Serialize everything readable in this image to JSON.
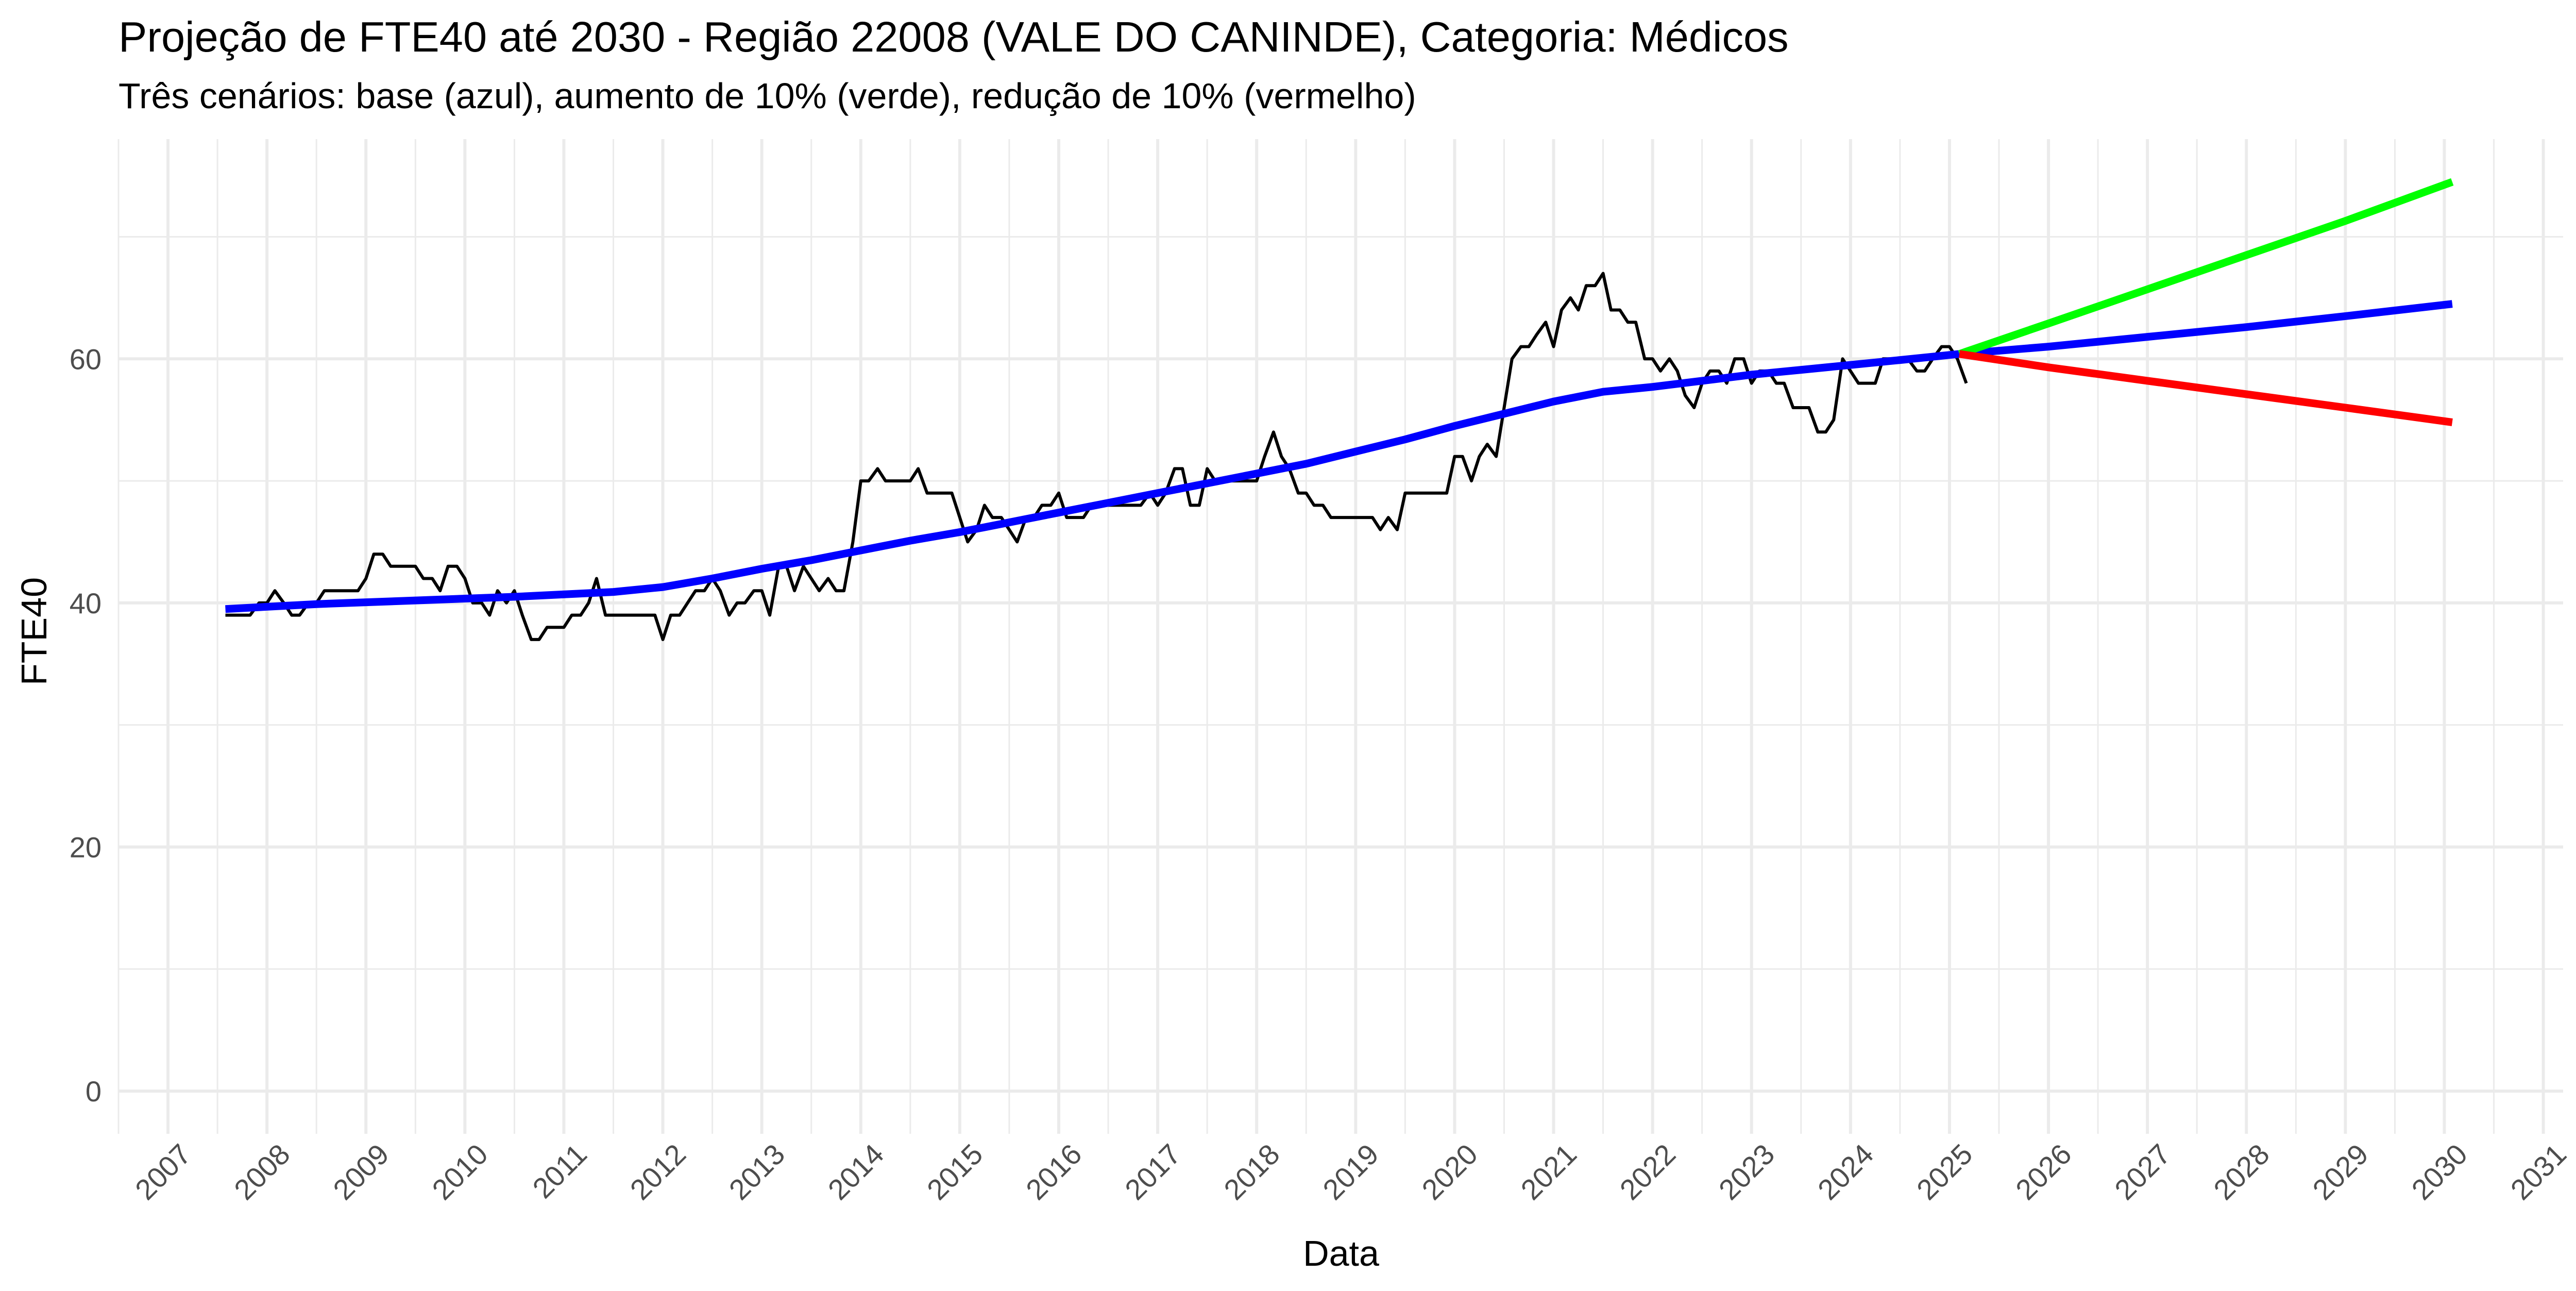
{
  "chart_data": {
    "type": "line",
    "title": "Projeção de FTE40 até 2030 - Região 22008 (VALE DO CANINDE), Categoria: Médicos",
    "subtitle": "Três cenários: base (azul), aumento de 10% (verde), redução de 10% (vermelho)",
    "xlabel": "Data",
    "ylabel": "FTE40",
    "x_ticks": [
      "2007",
      "2008",
      "2009",
      "2010",
      "2011",
      "2012",
      "2013",
      "2014",
      "2015",
      "2016",
      "2017",
      "2018",
      "2019",
      "2020",
      "2021",
      "2022",
      "2023",
      "2024",
      "2025",
      "2026",
      "2027",
      "2028",
      "2029",
      "2030",
      "2031"
    ],
    "y_ticks": [
      0,
      20,
      40,
      60
    ],
    "xlim": [
      2006.5,
      2031.2
    ],
    "ylim": [
      -3.5,
      78
    ],
    "grid": true,
    "legend": "none",
    "colors": {
      "observed": "#000000",
      "base": "#0000FF",
      "increase": "#00FF00",
      "decrease": "#FF0000",
      "grid": "#EBEBEB"
    },
    "series": [
      {
        "color_key": "observed",
        "points": [
          [
            2007.58,
            39
          ],
          [
            2007.67,
            39
          ],
          [
            2007.75,
            39
          ],
          [
            2007.83,
            39
          ],
          [
            2007.92,
            40
          ],
          [
            2008.0,
            40
          ],
          [
            2008.08,
            41
          ],
          [
            2008.17,
            40
          ],
          [
            2008.25,
            39
          ],
          [
            2008.33,
            39
          ],
          [
            2008.42,
            40
          ],
          [
            2008.5,
            40
          ],
          [
            2008.58,
            41
          ],
          [
            2008.67,
            41
          ],
          [
            2008.75,
            41
          ],
          [
            2008.83,
            41
          ],
          [
            2008.92,
            41
          ],
          [
            2009.0,
            42
          ],
          [
            2009.08,
            44
          ],
          [
            2009.17,
            44
          ],
          [
            2009.25,
            43
          ],
          [
            2009.33,
            43
          ],
          [
            2009.42,
            43
          ],
          [
            2009.5,
            43
          ],
          [
            2009.58,
            42
          ],
          [
            2009.67,
            42
          ],
          [
            2009.75,
            41
          ],
          [
            2009.83,
            43
          ],
          [
            2009.92,
            43
          ],
          [
            2010.0,
            42
          ],
          [
            2010.08,
            40
          ],
          [
            2010.17,
            40
          ],
          [
            2010.25,
            39
          ],
          [
            2010.33,
            41
          ],
          [
            2010.42,
            40
          ],
          [
            2010.5,
            41
          ],
          [
            2010.58,
            39
          ],
          [
            2010.67,
            37
          ],
          [
            2010.75,
            37
          ],
          [
            2010.83,
            38
          ],
          [
            2010.92,
            38
          ],
          [
            2011.0,
            38
          ],
          [
            2011.08,
            39
          ],
          [
            2011.17,
            39
          ],
          [
            2011.25,
            40
          ],
          [
            2011.33,
            42
          ],
          [
            2011.42,
            39
          ],
          [
            2011.5,
            39
          ],
          [
            2011.58,
            39
          ],
          [
            2011.67,
            39
          ],
          [
            2011.75,
            39
          ],
          [
            2011.83,
            39
          ],
          [
            2011.92,
            39
          ],
          [
            2012.0,
            37
          ],
          [
            2012.08,
            39
          ],
          [
            2012.17,
            39
          ],
          [
            2012.25,
            40
          ],
          [
            2012.33,
            41
          ],
          [
            2012.42,
            41
          ],
          [
            2012.5,
            42
          ],
          [
            2012.58,
            41
          ],
          [
            2012.67,
            39
          ],
          [
            2012.75,
            40
          ],
          [
            2012.83,
            40
          ],
          [
            2012.92,
            41
          ],
          [
            2013.0,
            41
          ],
          [
            2013.08,
            39
          ],
          [
            2013.17,
            43
          ],
          [
            2013.25,
            43
          ],
          [
            2013.33,
            41
          ],
          [
            2013.42,
            43
          ],
          [
            2013.5,
            42
          ],
          [
            2013.58,
            41
          ],
          [
            2013.67,
            42
          ],
          [
            2013.75,
            41
          ],
          [
            2013.83,
            41
          ],
          [
            2013.92,
            45
          ],
          [
            2014.0,
            50
          ],
          [
            2014.08,
            50
          ],
          [
            2014.17,
            51
          ],
          [
            2014.25,
            50
          ],
          [
            2014.33,
            50
          ],
          [
            2014.42,
            50
          ],
          [
            2014.5,
            50
          ],
          [
            2014.58,
            51
          ],
          [
            2014.67,
            49
          ],
          [
            2014.75,
            49
          ],
          [
            2014.83,
            49
          ],
          [
            2014.92,
            49
          ],
          [
            2015.0,
            47
          ],
          [
            2015.08,
            45
          ],
          [
            2015.17,
            46
          ],
          [
            2015.25,
            48
          ],
          [
            2015.33,
            47
          ],
          [
            2015.42,
            47
          ],
          [
            2015.5,
            46
          ],
          [
            2015.58,
            45
          ],
          [
            2015.67,
            47
          ],
          [
            2015.75,
            47
          ],
          [
            2015.83,
            48
          ],
          [
            2015.92,
            48
          ],
          [
            2016.0,
            49
          ],
          [
            2016.08,
            47
          ],
          [
            2016.17,
            47
          ],
          [
            2016.25,
            47
          ],
          [
            2016.33,
            48
          ],
          [
            2016.42,
            48
          ],
          [
            2016.5,
            48
          ],
          [
            2016.58,
            48
          ],
          [
            2016.67,
            48
          ],
          [
            2016.75,
            48
          ],
          [
            2016.83,
            48
          ],
          [
            2016.92,
            49
          ],
          [
            2017.0,
            48
          ],
          [
            2017.08,
            49
          ],
          [
            2017.17,
            51
          ],
          [
            2017.25,
            51
          ],
          [
            2017.33,
            48
          ],
          [
            2017.42,
            48
          ],
          [
            2017.5,
            51
          ],
          [
            2017.58,
            50
          ],
          [
            2017.67,
            50
          ],
          [
            2017.75,
            50
          ],
          [
            2017.83,
            50
          ],
          [
            2017.92,
            50
          ],
          [
            2018.0,
            50
          ],
          [
            2018.08,
            52
          ],
          [
            2018.17,
            54
          ],
          [
            2018.25,
            52
          ],
          [
            2018.33,
            51
          ],
          [
            2018.42,
            49
          ],
          [
            2018.5,
            49
          ],
          [
            2018.58,
            48
          ],
          [
            2018.67,
            48
          ],
          [
            2018.75,
            47
          ],
          [
            2018.83,
            47
          ],
          [
            2018.92,
            47
          ],
          [
            2019.0,
            47
          ],
          [
            2019.08,
            47
          ],
          [
            2019.17,
            47
          ],
          [
            2019.25,
            46
          ],
          [
            2019.33,
            47
          ],
          [
            2019.42,
            46
          ],
          [
            2019.5,
            49
          ],
          [
            2019.58,
            49
          ],
          [
            2019.67,
            49
          ],
          [
            2019.75,
            49
          ],
          [
            2019.83,
            49
          ],
          [
            2019.92,
            49
          ],
          [
            2020.0,
            52
          ],
          [
            2020.08,
            52
          ],
          [
            2020.17,
            50
          ],
          [
            2020.25,
            52
          ],
          [
            2020.33,
            53
          ],
          [
            2020.42,
            52
          ],
          [
            2020.5,
            56
          ],
          [
            2020.58,
            60
          ],
          [
            2020.67,
            61
          ],
          [
            2020.75,
            61
          ],
          [
            2020.83,
            62
          ],
          [
            2020.92,
            63
          ],
          [
            2021.0,
            61
          ],
          [
            2021.08,
            64
          ],
          [
            2021.17,
            65
          ],
          [
            2021.25,
            64
          ],
          [
            2021.33,
            66
          ],
          [
            2021.42,
            66
          ],
          [
            2021.5,
            67
          ],
          [
            2021.58,
            64
          ],
          [
            2021.67,
            64
          ],
          [
            2021.75,
            63
          ],
          [
            2021.83,
            63
          ],
          [
            2021.92,
            60
          ],
          [
            2022.0,
            60
          ],
          [
            2022.08,
            59
          ],
          [
            2022.17,
            60
          ],
          [
            2022.25,
            59
          ],
          [
            2022.33,
            57
          ],
          [
            2022.42,
            56
          ],
          [
            2022.5,
            58
          ],
          [
            2022.58,
            59
          ],
          [
            2022.67,
            59
          ],
          [
            2022.75,
            58
          ],
          [
            2022.83,
            60
          ],
          [
            2022.92,
            60
          ],
          [
            2023.0,
            58
          ],
          [
            2023.08,
            59
          ],
          [
            2023.17,
            59
          ],
          [
            2023.25,
            58
          ],
          [
            2023.33,
            58
          ],
          [
            2023.42,
            56
          ],
          [
            2023.5,
            56
          ],
          [
            2023.58,
            56
          ],
          [
            2023.67,
            54
          ],
          [
            2023.75,
            54
          ],
          [
            2023.83,
            55
          ],
          [
            2023.92,
            60
          ],
          [
            2024.0,
            59
          ],
          [
            2024.08,
            58
          ],
          [
            2024.17,
            58
          ],
          [
            2024.25,
            58
          ],
          [
            2024.33,
            60
          ],
          [
            2024.42,
            60
          ],
          [
            2024.5,
            60
          ],
          [
            2024.58,
            60
          ],
          [
            2024.67,
            59
          ],
          [
            2024.75,
            59
          ],
          [
            2024.83,
            60
          ],
          [
            2024.92,
            61
          ],
          [
            2025.0,
            61
          ],
          [
            2025.08,
            60
          ],
          [
            2025.17,
            58
          ]
        ]
      },
      {
        "color_key": "base",
        "points": [
          [
            2007.58,
            39.5
          ],
          [
            2008.5,
            39.9
          ],
          [
            2009.5,
            40.2
          ],
          [
            2010.5,
            40.5
          ],
          [
            2011.5,
            40.9
          ],
          [
            2012.0,
            41.3
          ],
          [
            2012.5,
            42.0
          ],
          [
            2013.0,
            42.8
          ],
          [
            2013.5,
            43.5
          ],
          [
            2014.0,
            44.3
          ],
          [
            2014.5,
            45.1
          ],
          [
            2015.0,
            45.8
          ],
          [
            2015.5,
            46.6
          ],
          [
            2016.0,
            47.4
          ],
          [
            2016.5,
            48.2
          ],
          [
            2017.0,
            49.0
          ],
          [
            2017.5,
            49.8
          ],
          [
            2018.0,
            50.6
          ],
          [
            2018.5,
            51.4
          ],
          [
            2019.0,
            52.4
          ],
          [
            2019.5,
            53.4
          ],
          [
            2020.0,
            54.5
          ],
          [
            2020.5,
            55.5
          ],
          [
            2021.0,
            56.5
          ],
          [
            2021.5,
            57.3
          ],
          [
            2022.0,
            57.7
          ],
          [
            2022.5,
            58.2
          ],
          [
            2023.0,
            58.7
          ],
          [
            2023.5,
            59.1
          ],
          [
            2024.0,
            59.5
          ],
          [
            2024.5,
            59.9
          ],
          [
            2025.1,
            60.4
          ],
          [
            2026.0,
            61.0
          ],
          [
            2027.0,
            61.8
          ],
          [
            2028.0,
            62.6
          ],
          [
            2029.0,
            63.5
          ],
          [
            2030.08,
            64.5
          ]
        ]
      },
      {
        "color_key": "increase",
        "points": [
          [
            2025.1,
            60.4
          ],
          [
            2026.0,
            62.9
          ],
          [
            2027.0,
            65.7
          ],
          [
            2028.0,
            68.5
          ],
          [
            2029.0,
            71.3
          ],
          [
            2030.08,
            74.5
          ]
        ]
      },
      {
        "color_key": "decrease",
        "points": [
          [
            2025.1,
            60.4
          ],
          [
            2026.0,
            59.3
          ],
          [
            2027.0,
            58.2
          ],
          [
            2028.0,
            57.1
          ],
          [
            2029.0,
            56.0
          ],
          [
            2030.08,
            54.8
          ]
        ]
      }
    ]
  }
}
